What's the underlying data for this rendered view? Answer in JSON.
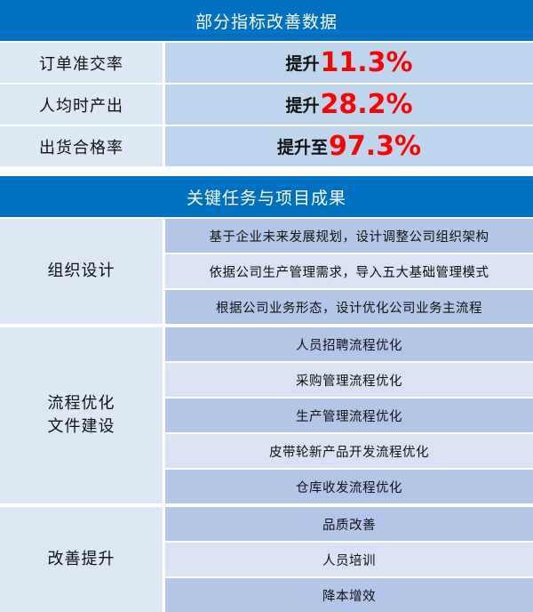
{
  "metrics_section": {
    "title": "部分指标改善数据",
    "rows": [
      {
        "label": "订单准交率",
        "prefix": "提升",
        "value": "11.3%"
      },
      {
        "label": "人均时产出",
        "prefix": "提升",
        "value": "28.2%"
      },
      {
        "label": "出货合格率",
        "prefix": "提升至",
        "value": "97.3%"
      }
    ]
  },
  "tasks_section": {
    "title": "关键任务与项目成果",
    "groups": [
      {
        "label": "组织设计",
        "items": [
          "基于企业未来发展规划，设计调整公司组织架构",
          "依据公司生产管理需求，导入五大基础管理模式",
          "根据公司业务形态，设计优化公司业务主流程"
        ]
      },
      {
        "label": "流程优化\n文件建设",
        "items": [
          "人员招聘流程优化",
          "采购管理流程优化",
          "生产管理流程优化",
          "皮带轮新产品开发流程优化",
          "仓库收发流程优化"
        ]
      },
      {
        "label": "改善提升",
        "items": [
          "品质改善",
          "人员培训",
          "降本增效"
        ]
      }
    ]
  },
  "colors": {
    "header": "#0070c0",
    "highlight": "#ff0000",
    "label_bg": "#dde8f5",
    "row_dark": "#b4c6e7",
    "row_light": "#dae2f3"
  }
}
